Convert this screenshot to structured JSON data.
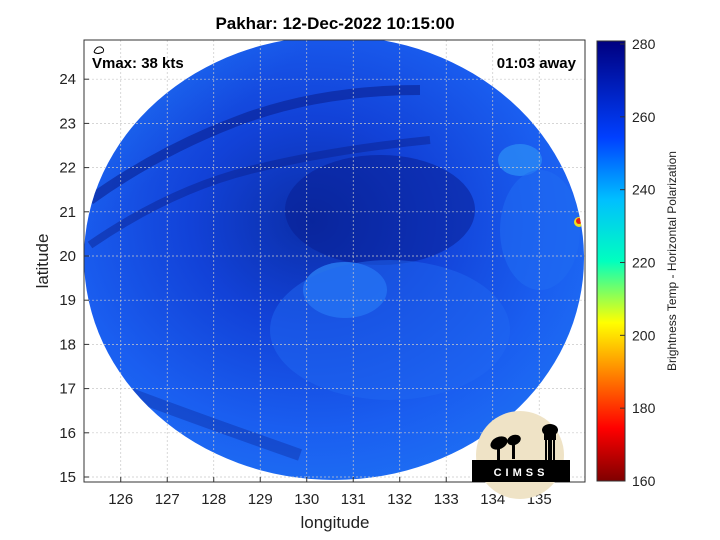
{
  "title": "Pakhar: 12-Dec-2022 10:15:00",
  "vmax_label": "Vmax: 38 kts",
  "time_away": "01:03 away",
  "xlabel": "longitude",
  "ylabel": "latitude",
  "x_ticks": [
    "126",
    "127",
    "128",
    "129",
    "130",
    "131",
    "132",
    "133",
    "134",
    "135"
  ],
  "y_ticks": [
    "15",
    "16",
    "17",
    "18",
    "19",
    "20",
    "21",
    "22",
    "23",
    "24"
  ],
  "colorbar": {
    "label": "Brightness Temp - Horizontal Polarization",
    "ticks": [
      "160",
      "180",
      "200",
      "220",
      "240",
      "260",
      "280"
    ],
    "min": 160,
    "max": 280,
    "colormap": "jet"
  },
  "logo_text": "CIMSS",
  "colors": {
    "swath_dark": "#0a2fb8",
    "swath_mid": "#1a5cf0",
    "swath_light": "#2a8cf5",
    "hot_spot": "#e8201a"
  },
  "icons": [
    "storm-symbol-icon",
    "cimss-logo-icon"
  ]
}
